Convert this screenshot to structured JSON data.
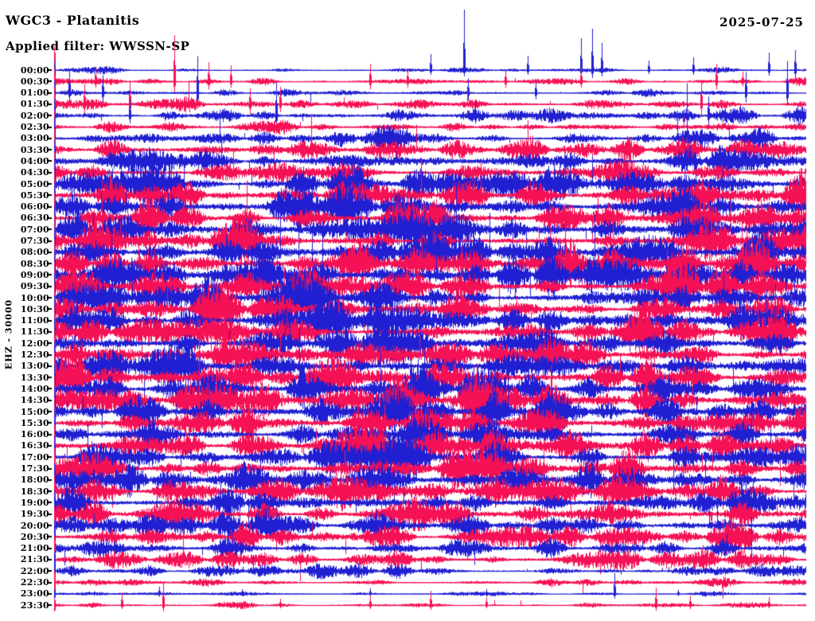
{
  "header": {
    "station_line": "WGC3 - Platanitis",
    "filter_line": "Applied filter: WWSSN-SP",
    "date": "2025-07-25"
  },
  "axis": {
    "left_label": "EHZ - 30000"
  },
  "colors": {
    "blue": "#2020d2",
    "red": "#f51155",
    "text": "#000000",
    "background": "#ffffff"
  },
  "chart_data": {
    "type": "helicorder",
    "station": "WGC3",
    "site": "Platanitis",
    "channel": "EHZ",
    "scale": 30000,
    "filter": "WWSSN-SP",
    "date": "2025-07-25",
    "minutes_per_line": 30,
    "time_axis_side": "left",
    "trace_color_pattern": [
      "blue",
      "red"
    ],
    "rows": [
      {
        "t": "00:00",
        "color": "blue",
        "amp": 1.8,
        "s": 0.002,
        "e": 10,
        "spikes": [
          [
            0.5,
            20,
            6
          ],
          [
            0.545,
            76,
            8
          ],
          [
            0.63,
            18,
            6
          ],
          [
            0.7,
            40,
            8
          ],
          [
            0.715,
            52,
            10
          ],
          [
            0.728,
            34,
            8
          ],
          [
            0.79,
            12,
            5
          ],
          [
            0.85,
            16,
            6
          ],
          [
            0.95,
            22,
            7
          ],
          [
            0.985,
            25,
            10
          ]
        ]
      },
      {
        "t": "00:30",
        "color": "red",
        "amp": 2.2,
        "s": 0.003,
        "e": 45,
        "spikes": [
          [
            0.055,
            18,
            8
          ],
          [
            0.16,
            58,
            14
          ],
          [
            0.205,
            24,
            10
          ],
          [
            0.235,
            20,
            8
          ],
          [
            0.42,
            22,
            10
          ],
          [
            0.47,
            16,
            8
          ],
          [
            0.6,
            14,
            8
          ],
          [
            0.7,
            18,
            8
          ],
          [
            0.88,
            22,
            10
          ],
          [
            0.915,
            12,
            6
          ]
        ]
      },
      {
        "t": "01:00",
        "color": "blue",
        "amp": 3.0,
        "s": 0.004,
        "e": 40,
        "spikes": [
          [
            0.02,
            30,
            10
          ],
          [
            0.065,
            22,
            12
          ],
          [
            0.19,
            46,
            20
          ],
          [
            0.55,
            18,
            10
          ],
          [
            0.64,
            14,
            8
          ],
          [
            0.92,
            26,
            12
          ],
          [
            0.975,
            40,
            16
          ]
        ]
      },
      {
        "t": "01:30",
        "color": "red",
        "amp": 3.6,
        "s": 0.005,
        "e": 45,
        "spikes": [
          [
            0.04,
            25,
            12
          ],
          [
            0.1,
            30,
            14
          ],
          [
            0.26,
            20,
            12
          ],
          [
            0.3,
            22,
            10
          ],
          [
            0.86,
            30,
            12
          ]
        ]
      },
      {
        "t": "02:00",
        "color": "blue",
        "amp": 4.2,
        "s": 0.005,
        "e": 45,
        "spikes": [
          [
            0.295,
            42,
            16
          ],
          [
            0.1,
            20,
            10
          ],
          [
            0.56,
            18,
            10
          ],
          [
            0.87,
            24,
            12
          ]
        ]
      },
      {
        "t": "02:30",
        "color": "red",
        "amp": 4.8,
        "s": 0.005,
        "e": 50
      },
      {
        "t": "03:00",
        "color": "blue",
        "amp": 5.5,
        "s": 0.006,
        "e": 50
      },
      {
        "t": "03:30",
        "color": "red",
        "amp": 6.5,
        "s": 0.006,
        "e": 50
      },
      {
        "t": "04:00",
        "color": "blue",
        "amp": 7.5,
        "s": 0.006,
        "e": 55
      },
      {
        "t": "04:30",
        "color": "red",
        "amp": 8.5,
        "s": 0.007,
        "e": 55
      },
      {
        "t": "05:00",
        "color": "blue",
        "amp": 9.5,
        "s": 0.007,
        "e": 55
      },
      {
        "t": "05:30",
        "color": "red",
        "amp": 10.5,
        "s": 0.007,
        "e": 55
      },
      {
        "t": "06:00",
        "color": "blue",
        "amp": 11.5,
        "s": 0.008,
        "e": 60
      },
      {
        "t": "06:30",
        "color": "red",
        "amp": 12,
        "s": 0.008,
        "e": 60
      },
      {
        "t": "07:00",
        "color": "blue",
        "amp": 12.5,
        "s": 0.008,
        "e": 60
      },
      {
        "t": "07:30",
        "color": "red",
        "amp": 13,
        "s": 0.008,
        "e": 60
      },
      {
        "t": "08:00",
        "color": "blue",
        "amp": 13,
        "s": 0.008,
        "e": 60
      },
      {
        "t": "08:30",
        "color": "red",
        "amp": 13.5,
        "s": 0.008,
        "e": 60
      },
      {
        "t": "09:00",
        "color": "blue",
        "amp": 13.5,
        "s": 0.008,
        "e": 60
      },
      {
        "t": "09:30",
        "color": "red",
        "amp": 13,
        "s": 0.008,
        "e": 60
      },
      {
        "t": "10:00",
        "color": "blue",
        "amp": 13.5,
        "s": 0.008,
        "e": 60
      },
      {
        "t": "10:30",
        "color": "red",
        "amp": 13.5,
        "s": 0.008,
        "e": 60
      },
      {
        "t": "11:00",
        "color": "blue",
        "amp": 14,
        "s": 0.008,
        "e": 60
      },
      {
        "t": "11:30",
        "color": "red",
        "amp": 13.5,
        "s": 0.008,
        "e": 60
      },
      {
        "t": "12:00",
        "color": "blue",
        "amp": 13.5,
        "s": 0.008,
        "e": 60
      },
      {
        "t": "12:30",
        "color": "red",
        "amp": 14,
        "s": 0.008,
        "e": 60
      },
      {
        "t": "13:00",
        "color": "blue",
        "amp": 13.5,
        "s": 0.008,
        "e": 60
      },
      {
        "t": "13:30",
        "color": "red",
        "amp": 13,
        "s": 0.008,
        "e": 60
      },
      {
        "t": "14:00",
        "color": "blue",
        "amp": 13.5,
        "s": 0.008,
        "e": 60
      },
      {
        "t": "14:30",
        "color": "red",
        "amp": 13,
        "s": 0.008,
        "e": 60
      },
      {
        "t": "15:00",
        "color": "blue",
        "amp": 13,
        "s": 0.008,
        "e": 60
      },
      {
        "t": "15:30",
        "color": "red",
        "amp": 12.5,
        "s": 0.008,
        "e": 60
      },
      {
        "t": "16:00",
        "color": "blue",
        "amp": 12.5,
        "s": 0.008,
        "e": 60
      },
      {
        "t": "16:30",
        "color": "red",
        "amp": 12,
        "s": 0.008,
        "e": 60
      },
      {
        "t": "17:00",
        "color": "blue",
        "amp": 12.5,
        "s": 0.008,
        "e": 60
      },
      {
        "t": "17:30",
        "color": "red",
        "amp": 12,
        "s": 0.008,
        "e": 55
      },
      {
        "t": "18:00",
        "color": "blue",
        "amp": 11.5,
        "s": 0.007,
        "e": 55
      },
      {
        "t": "18:30",
        "color": "red",
        "amp": 11,
        "s": 0.007,
        "e": 55
      },
      {
        "t": "19:00",
        "color": "blue",
        "amp": 10.5,
        "s": 0.007,
        "e": 50
      },
      {
        "t": "19:30",
        "color": "red",
        "amp": 10,
        "s": 0.007,
        "e": 50
      },
      {
        "t": "20:00",
        "color": "blue",
        "amp": 9,
        "s": 0.006,
        "e": 45
      },
      {
        "t": "20:30",
        "color": "red",
        "amp": 8,
        "s": 0.006,
        "e": 40
      },
      {
        "t": "21:00",
        "color": "blue",
        "amp": 6.5,
        "s": 0.005,
        "e": 35
      },
      {
        "t": "21:30",
        "color": "red",
        "amp": 5.5,
        "s": 0.005,
        "e": 30
      },
      {
        "t": "22:00",
        "color": "blue",
        "amp": 4.5,
        "s": 0.004,
        "e": 25
      },
      {
        "t": "22:30",
        "color": "red",
        "amp": 3.0,
        "s": 0.003,
        "e": 15
      },
      {
        "t": "23:00",
        "color": "blue",
        "amp": 1.6,
        "s": 0.0015,
        "e": 6,
        "spikes": [
          [
            0.14,
            9,
            4
          ],
          [
            0.25,
            6,
            3
          ],
          [
            0.42,
            7,
            3
          ],
          [
            0.575,
            6,
            3
          ],
          [
            0.745,
            26,
            6
          ],
          [
            0.83,
            5,
            3
          ]
        ]
      },
      {
        "t": "23:30",
        "color": "red",
        "amp": 1.6,
        "s": 0.002,
        "e": 8,
        "spikes": [
          [
            0.09,
            16,
            5
          ],
          [
            0.145,
            28,
            8
          ],
          [
            0.3,
            8,
            4
          ],
          [
            0.42,
            12,
            5
          ],
          [
            0.5,
            18,
            6
          ],
          [
            0.575,
            10,
            4
          ],
          [
            0.8,
            22,
            7
          ],
          [
            0.845,
            12,
            5
          ],
          [
            0.95,
            10,
            4
          ]
        ]
      }
    ]
  }
}
